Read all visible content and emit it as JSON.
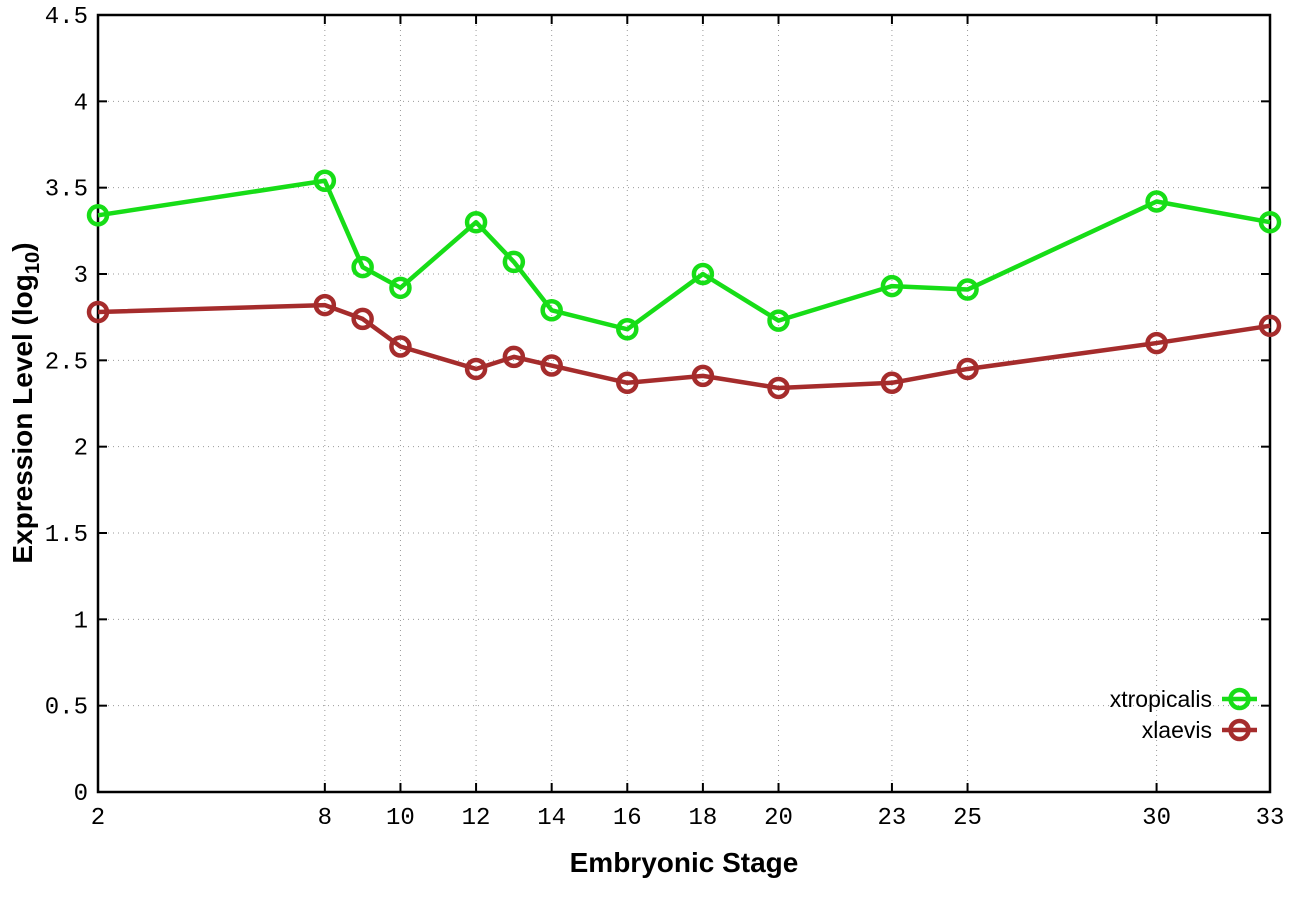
{
  "chart_data": {
    "type": "line",
    "title": "",
    "xlabel": "Embryonic Stage",
    "ylabel_prefix": "Expression Level (log",
    "ylabel_sub": "10",
    "ylabel_suffix": ")",
    "x": [
      2,
      8,
      9,
      10,
      12,
      13,
      14,
      16,
      18,
      20,
      23,
      25,
      30,
      33
    ],
    "series": [
      {
        "name": "xtropicalis",
        "color": "#17dd17",
        "values": [
          3.34,
          3.54,
          3.04,
          2.92,
          3.3,
          3.07,
          2.79,
          2.68,
          3.0,
          2.73,
          2.93,
          2.91,
          3.42,
          3.3
        ]
      },
      {
        "name": "xlaevis",
        "color": "#a52c2c",
        "values": [
          2.78,
          2.82,
          2.74,
          2.58,
          2.45,
          2.52,
          2.47,
          2.37,
          2.41,
          2.34,
          2.37,
          2.45,
          2.6,
          2.7
        ]
      }
    ],
    "xlim": [
      2,
      33
    ],
    "ylim": [
      0,
      4.5
    ],
    "x_ticks": [
      2,
      8,
      10,
      12,
      14,
      16,
      18,
      20,
      23,
      25,
      30,
      33
    ],
    "y_ticks": [
      0,
      0.5,
      1,
      1.5,
      2,
      2.5,
      3,
      3.5,
      4,
      4.5
    ],
    "grid": true,
    "marker": "open-circle",
    "legend_position": "bottom-right",
    "colors": {
      "grid": "#9a9a9a",
      "axis": "#000000",
      "background": "#ffffff",
      "text": "#000000"
    }
  }
}
